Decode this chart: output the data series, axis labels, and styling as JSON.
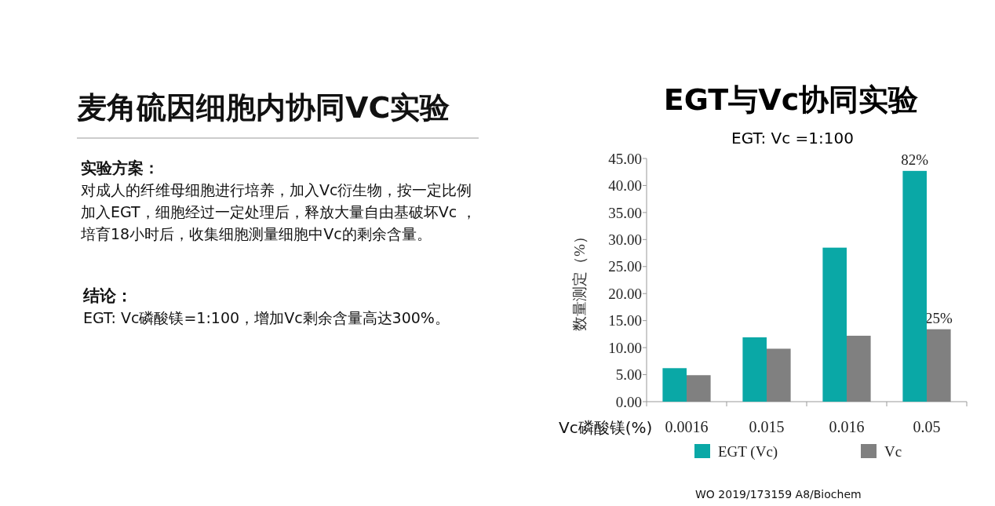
{
  "chart_data": {
    "type": "bar",
    "title": "EGT与Vc协同实验",
    "subtitle": "EGT: Vc =1:100",
    "xlabel": "Vc磷酸镁(%)",
    "ylabel": "数量测定（%）",
    "categories": [
      "0.0016",
      "0.015",
      "0.016",
      "0.05"
    ],
    "series": [
      {
        "name": "EGT (Vc)",
        "color": "#0aa8a6",
        "values": [
          6.2,
          11.9,
          28.5,
          42.7
        ]
      },
      {
        "name": "Vc",
        "color": "#808080",
        "values": [
          4.9,
          9.8,
          12.2,
          13.4
        ]
      }
    ],
    "ylim": [
      0,
      45
    ],
    "yticks": [
      {
        "value": 0,
        "label": "0.00"
      },
      {
        "value": 5,
        "label": "5.00"
      },
      {
        "value": 10,
        "label": "10.00"
      },
      {
        "value": 15,
        "label": "15.00"
      },
      {
        "value": 20,
        "label": "20.00"
      },
      {
        "value": 25,
        "label": "25.00"
      },
      {
        "value": 30,
        "label": "30.00"
      },
      {
        "value": 35,
        "label": "35.00"
      },
      {
        "value": 40,
        "label": "40.00"
      },
      {
        "value": 45,
        "label": "45.00"
      }
    ],
    "grid": false,
    "legend": "bottom",
    "annotations": [
      "麦角硫因细胞内协同VC实验",
      "实验方案：",
      "对成人的纤维母细胞进行培养，加入Vc衍生物，按一定比例",
      "加入EGT，细胞经过一定处理后，释放大量自由基破坏Vc ，",
      "培育18小时后，收集细胞测量细胞中Vc的剩余含量。",
      "结论：",
      "EGT: Vc磷酸镁=1:100，增加Vc剩余含量高达300%。",
      "WO 2019/173159 A8/Biochem",
      {
        "text": "82%",
        "x": "0.05",
        "y": 42.7
      },
      {
        "text": "25%",
        "x": "0.05",
        "y": 13.4
      }
    ]
  }
}
